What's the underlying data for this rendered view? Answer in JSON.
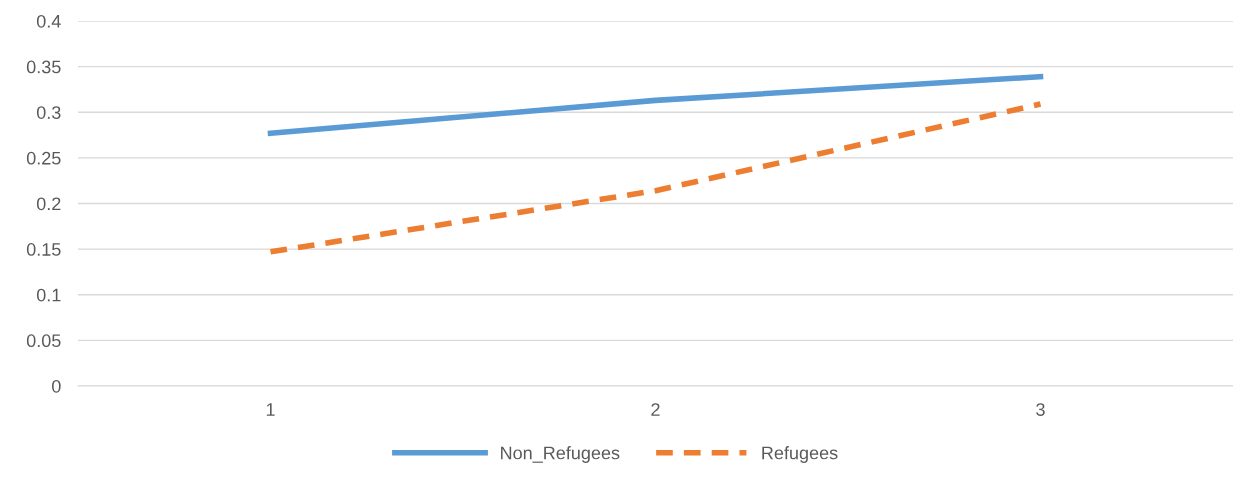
{
  "chart_data": {
    "type": "line",
    "categories": [
      "1",
      "2",
      "3"
    ],
    "series": [
      {
        "name": "Non_Refugees",
        "color": "#5b9bd5",
        "values": [
          0.277,
          0.313,
          0.339
        ],
        "line_style": "solid"
      },
      {
        "name": "Refugees",
        "color": "#ed7d31",
        "values": [
          0.147,
          0.214,
          0.309
        ],
        "line_style": "dashed"
      }
    ],
    "ylim": [
      0,
      0.4
    ],
    "yticks": [
      0,
      0.05,
      0.1,
      0.15,
      0.2,
      0.25,
      0.3,
      0.35,
      0.4
    ],
    "grid": "y",
    "legend": "bottom",
    "marker": "none"
  }
}
